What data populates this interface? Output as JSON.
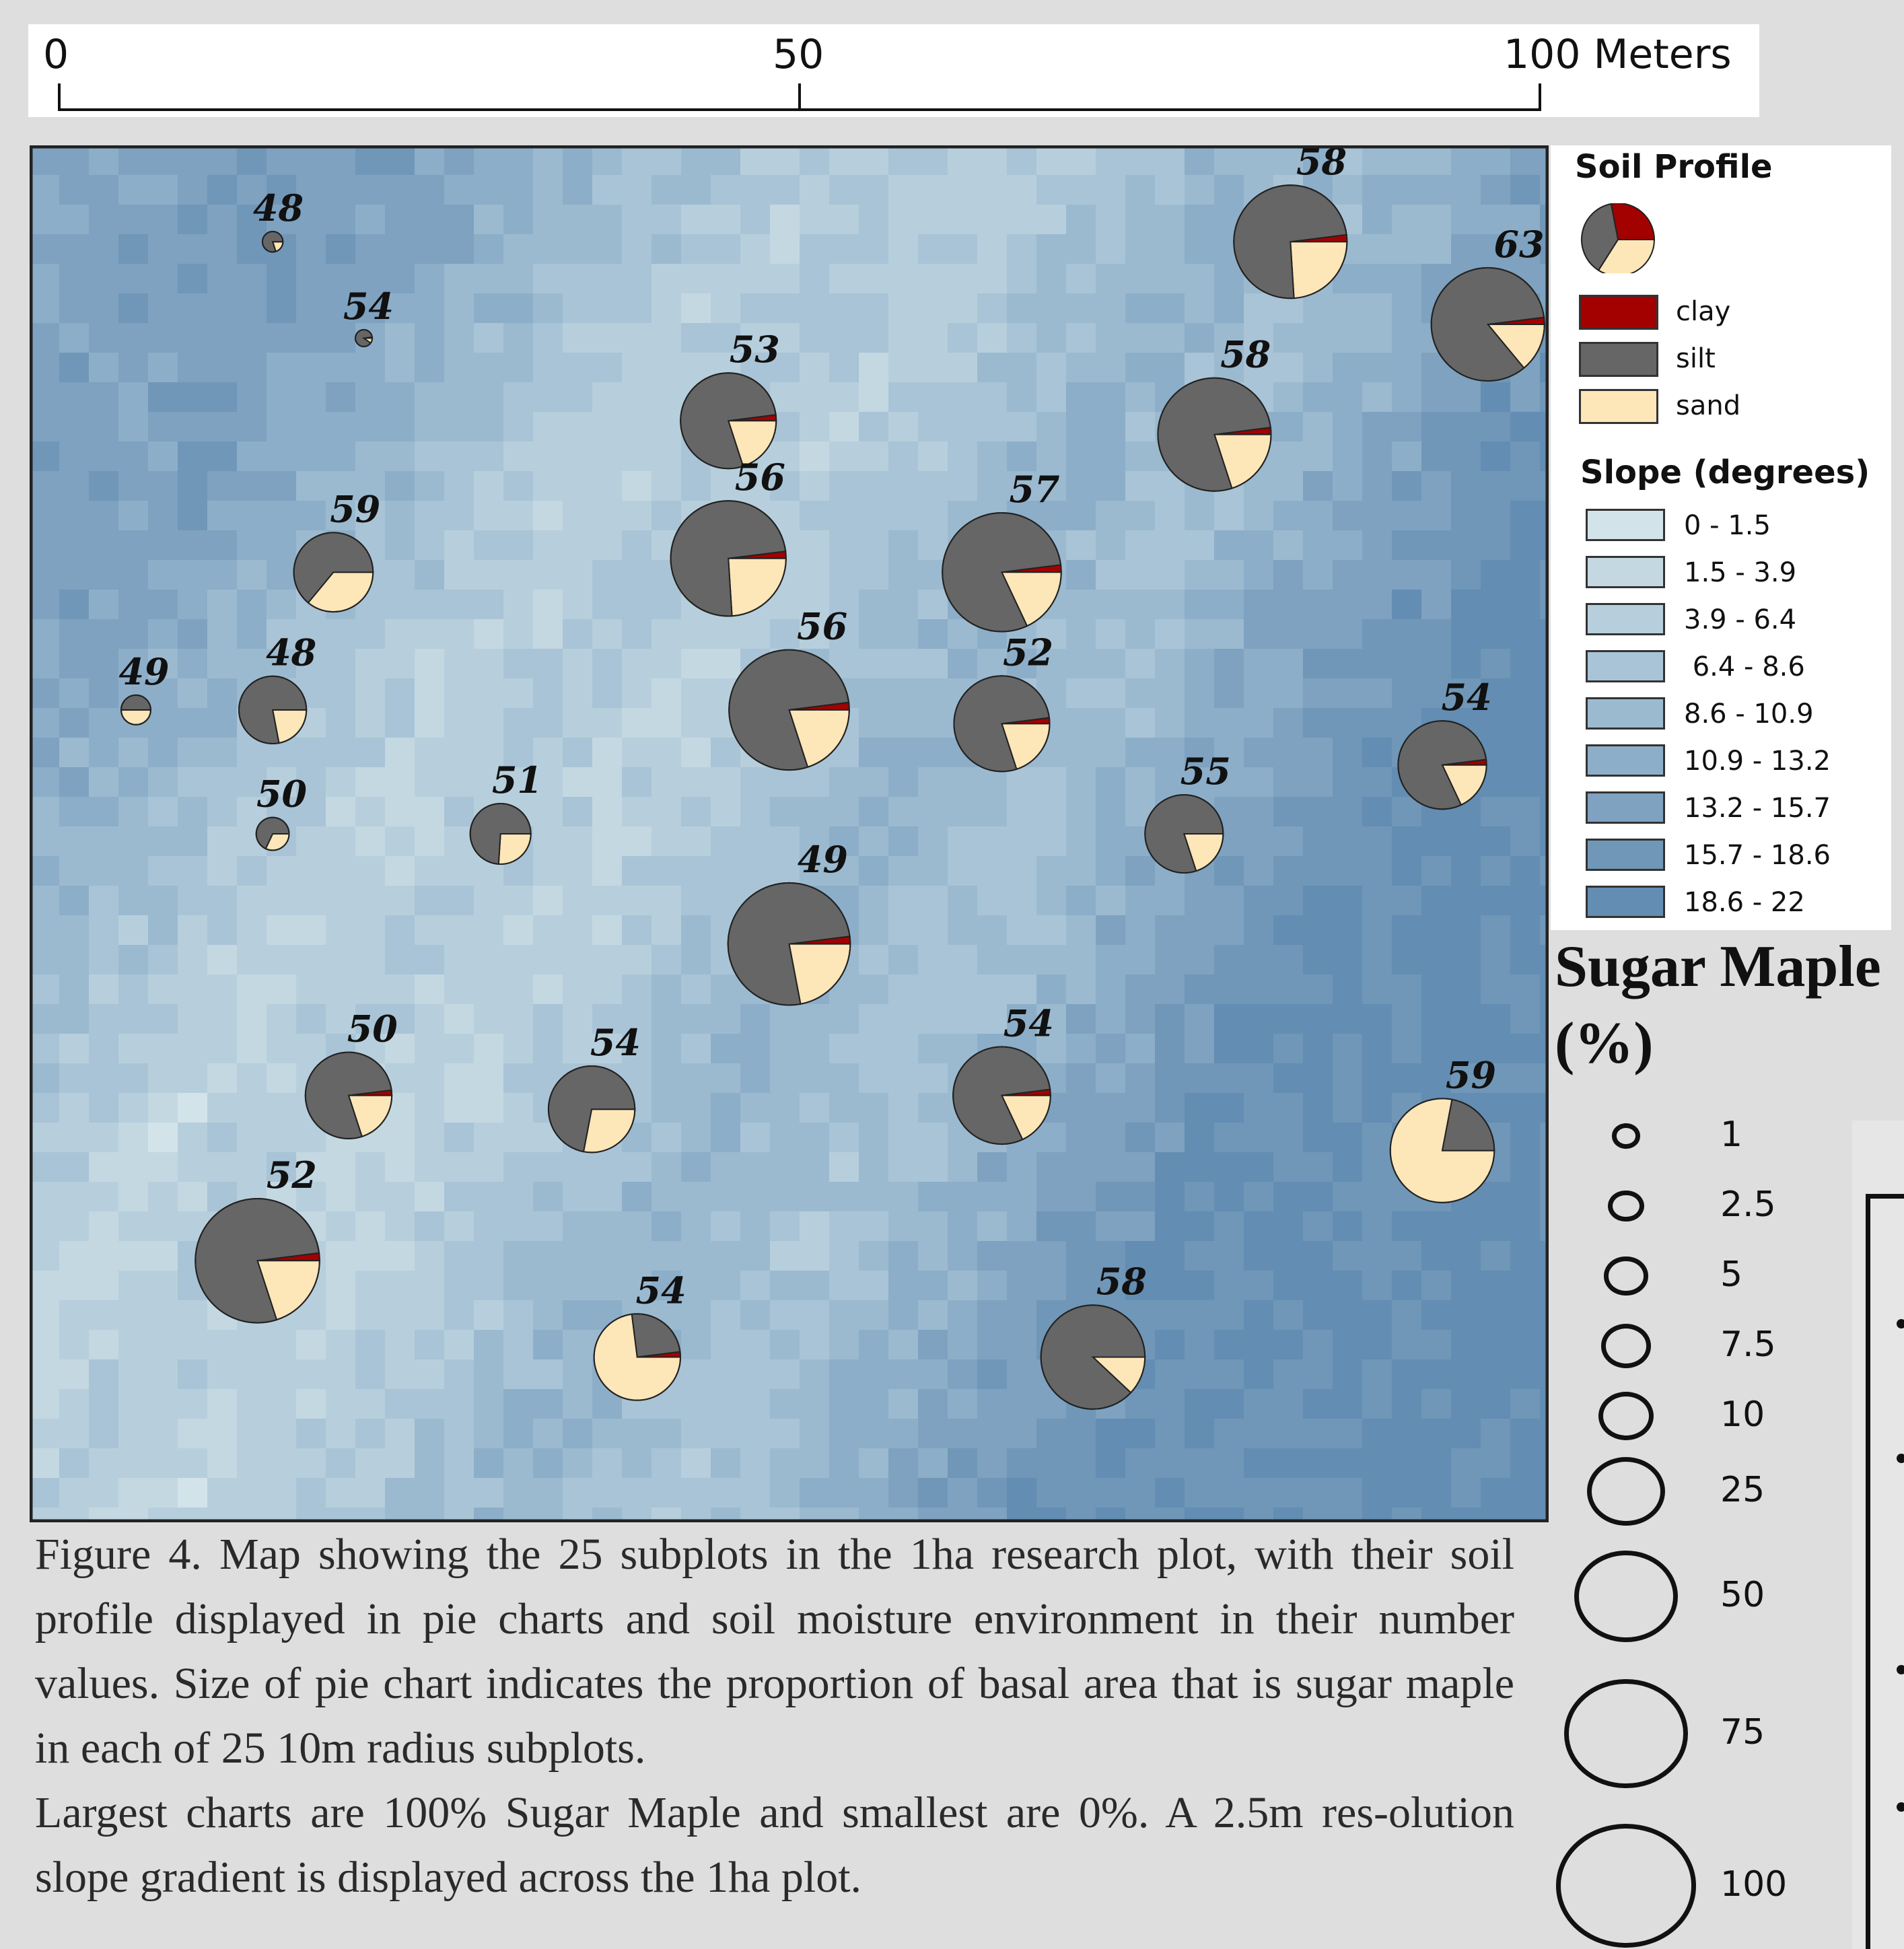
{
  "scale_bar": {
    "labels": [
      "0",
      "50",
      "100 Meters"
    ],
    "values": [
      0,
      50,
      100
    ]
  },
  "map": {
    "plot_extent_m": [
      0,
      100
    ],
    "subplots": [
      {
        "label": "48",
        "x": 16,
        "y": 7,
        "maple_pct": 1,
        "clay": 0.0,
        "silt": 0.8,
        "sand": 0.2
      },
      {
        "label": "54",
        "x": 22,
        "y": 14,
        "maple_pct": 0.5,
        "clay": 0.02,
        "silt": 0.88,
        "sand": 0.1
      },
      {
        "label": "58",
        "x": 83,
        "y": 7,
        "maple_pct": 72,
        "clay": 0.02,
        "silt": 0.74,
        "sand": 0.24
      },
      {
        "label": "63",
        "x": 96,
        "y": 13,
        "maple_pct": 72,
        "clay": 0.02,
        "silt": 0.84,
        "sand": 0.14
      },
      {
        "label": "53",
        "x": 46,
        "y": 20,
        "maple_pct": 50,
        "clay": 0.02,
        "silt": 0.78,
        "sand": 0.2
      },
      {
        "label": "58",
        "x": 78,
        "y": 21,
        "maple_pct": 72,
        "clay": 0.02,
        "silt": 0.78,
        "sand": 0.2
      },
      {
        "label": "56",
        "x": 46,
        "y": 30,
        "maple_pct": 75,
        "clay": 0.02,
        "silt": 0.74,
        "sand": 0.24
      },
      {
        "label": "57",
        "x": 64,
        "y": 31,
        "maple_pct": 80,
        "clay": 0.02,
        "silt": 0.8,
        "sand": 0.18
      },
      {
        "label": "59",
        "x": 20,
        "y": 31,
        "maple_pct": 33,
        "clay": 0.0,
        "silt": 0.64,
        "sand": 0.36
      },
      {
        "label": "56",
        "x": 50,
        "y": 41,
        "maple_pct": 82,
        "clay": 0.02,
        "silt": 0.78,
        "sand": 0.2
      },
      {
        "label": "52",
        "x": 64,
        "y": 42,
        "maple_pct": 50,
        "clay": 0.02,
        "silt": 0.78,
        "sand": 0.2
      },
      {
        "label": "48",
        "x": 16,
        "y": 41,
        "maple_pct": 23,
        "clay": 0.0,
        "silt": 0.78,
        "sand": 0.22
      },
      {
        "label": "49",
        "x": 7,
        "y": 41,
        "maple_pct": 3,
        "clay": 0.0,
        "silt": 0.5,
        "sand": 0.5
      },
      {
        "label": "54",
        "x": 93,
        "y": 45,
        "maple_pct": 42,
        "clay": 0.02,
        "silt": 0.8,
        "sand": 0.18
      },
      {
        "label": "51",
        "x": 31,
        "y": 50,
        "maple_pct": 18,
        "clay": 0.0,
        "silt": 0.74,
        "sand": 0.26
      },
      {
        "label": "50",
        "x": 16,
        "y": 50,
        "maple_pct": 4,
        "clay": 0.0,
        "silt": 0.68,
        "sand": 0.32
      },
      {
        "label": "55",
        "x": 76,
        "y": 50,
        "maple_pct": 32,
        "clay": 0.0,
        "silt": 0.8,
        "sand": 0.2
      },
      {
        "label": "49",
        "x": 50,
        "y": 58,
        "maple_pct": 85,
        "clay": 0.02,
        "silt": 0.76,
        "sand": 0.22
      },
      {
        "label": "50",
        "x": 21,
        "y": 69,
        "maple_pct": 40,
        "clay": 0.02,
        "silt": 0.78,
        "sand": 0.2
      },
      {
        "label": "54",
        "x": 37,
        "y": 70,
        "maple_pct": 40,
        "clay": 0.0,
        "silt": 0.72,
        "sand": 0.28
      },
      {
        "label": "54",
        "x": 64,
        "y": 69,
        "maple_pct": 52,
        "clay": 0.02,
        "silt": 0.8,
        "sand": 0.18
      },
      {
        "label": "59",
        "x": 93,
        "y": 73,
        "maple_pct": 60,
        "clay": 0.0,
        "silt": 0.22,
        "sand": 0.78
      },
      {
        "label": "52",
        "x": 15,
        "y": 81,
        "maple_pct": 88,
        "clay": 0.02,
        "silt": 0.78,
        "sand": 0.2
      },
      {
        "label": "54",
        "x": 40,
        "y": 88,
        "maple_pct": 40,
        "clay": 0.02,
        "silt": 0.25,
        "sand": 0.73
      },
      {
        "label": "58",
        "x": 70,
        "y": 88,
        "maple_pct": 60,
        "clay": 0.0,
        "silt": 0.88,
        "sand": 0.12
      }
    ]
  },
  "legend": {
    "soil_title": "Soil Profile",
    "soil_classes": [
      {
        "label": "clay",
        "color": "#a30000"
      },
      {
        "label": "silt",
        "color": "#666666"
      },
      {
        "label": "sand",
        "color": "#fde6b8"
      }
    ],
    "slope_title": "Slope (degrees)",
    "slope_classes": [
      {
        "label": "0 - 1.5",
        "color": "#d2e3ea"
      },
      {
        "label": "1.5 - 3.9",
        "color": "#c4d8e2"
      },
      {
        "label": "3.9 - 6.4",
        "color": "#b7cfdc"
      },
      {
        "label": " 6.4 - 8.6",
        "color": "#a9c4d6"
      },
      {
        "label": "8.6 - 10.9",
        "color": "#9bbad0"
      },
      {
        "label": "10.9 - 13.2",
        "color": "#8daec8"
      },
      {
        "label": "13.2 - 15.7",
        "color": "#7ea2c0"
      },
      {
        "label": "15.7 - 18.6",
        "color": "#7097b8"
      },
      {
        "label": "18.6 - 22",
        "color": "#638db2"
      }
    ]
  },
  "size_legend": {
    "title": "Sugar Maple (%)",
    "entries": [
      {
        "label": "1",
        "value": 1
      },
      {
        "label": "2.5",
        "value": 2.5
      },
      {
        "label": "5",
        "value": 5
      },
      {
        "label": "7.5",
        "value": 7.5
      },
      {
        "label": "10",
        "value": 10
      },
      {
        "label": "25",
        "value": 25
      },
      {
        "label": "50",
        "value": 50
      },
      {
        "label": "75",
        "value": 75
      },
      {
        "label": "100",
        "value": 100
      }
    ]
  },
  "caption": {
    "p1": "Figure 4. Map showing the 25 subplots in the 1ha research plot, with their soil profile displayed in pie charts and soil moisture environment in their number values. Size of pie chart indicates the proportion of basal area that is sugar maple in each of 25 10m radius subplots.",
    "p2": " Largest charts are 100% Sugar Maple and smallest are 0%. A 2.5m res-olution slope gradient is displayed across the 1ha plot."
  }
}
